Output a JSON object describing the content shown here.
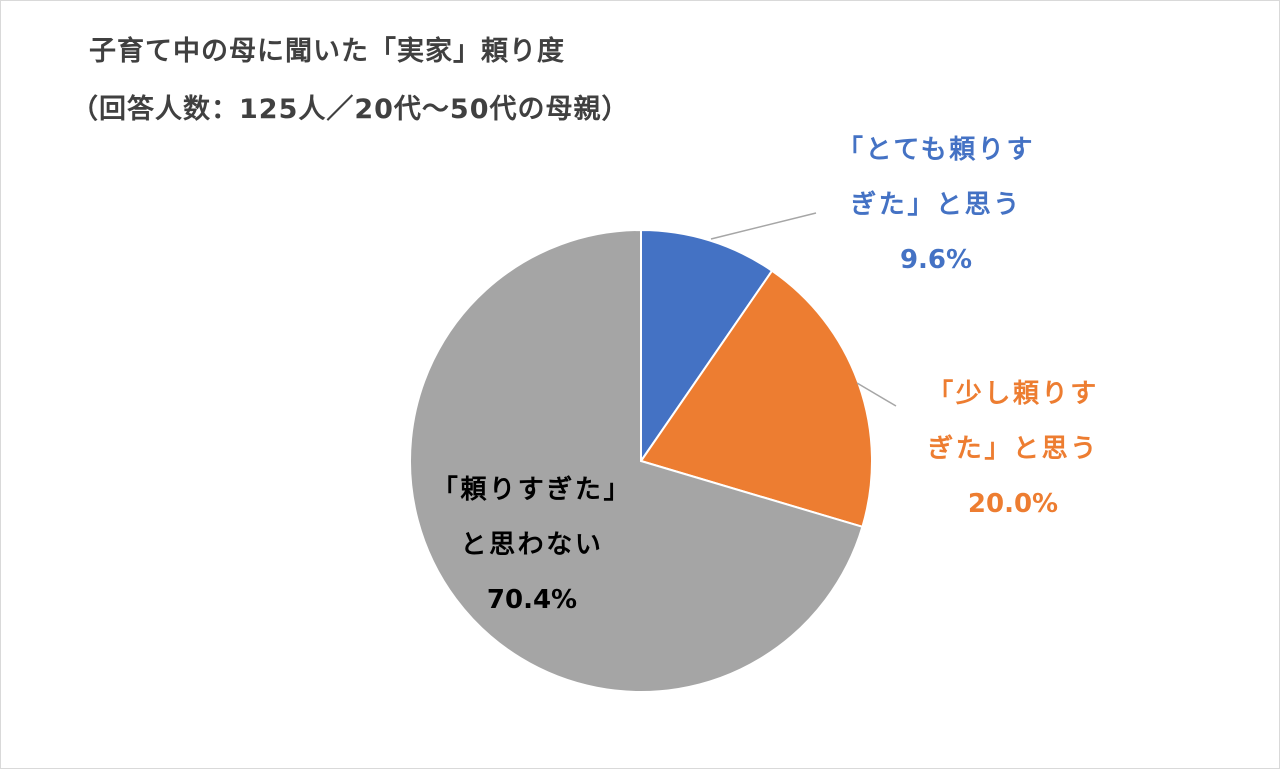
{
  "chart_data": {
    "type": "pie",
    "title": "子育て中の母に聞いた「実家」頼り度",
    "subtitle": "（回答人数：125人／20代～50代の母親）",
    "categories": [
      "「とても頼りすぎた」と思う",
      "「少し頼りすぎた」と思う",
      "「頼りすぎた」と思わない"
    ],
    "values": [
      9.6,
      20.0,
      70.4
    ],
    "value_labels": [
      "9.6%",
      "20.0%",
      "70.4%"
    ],
    "colors": [
      "#4472c4",
      "#ed7d31",
      "#a5a5a5"
    ],
    "label_colors": [
      "#4472c4",
      "#ed7d31",
      "#000000"
    ]
  }
}
